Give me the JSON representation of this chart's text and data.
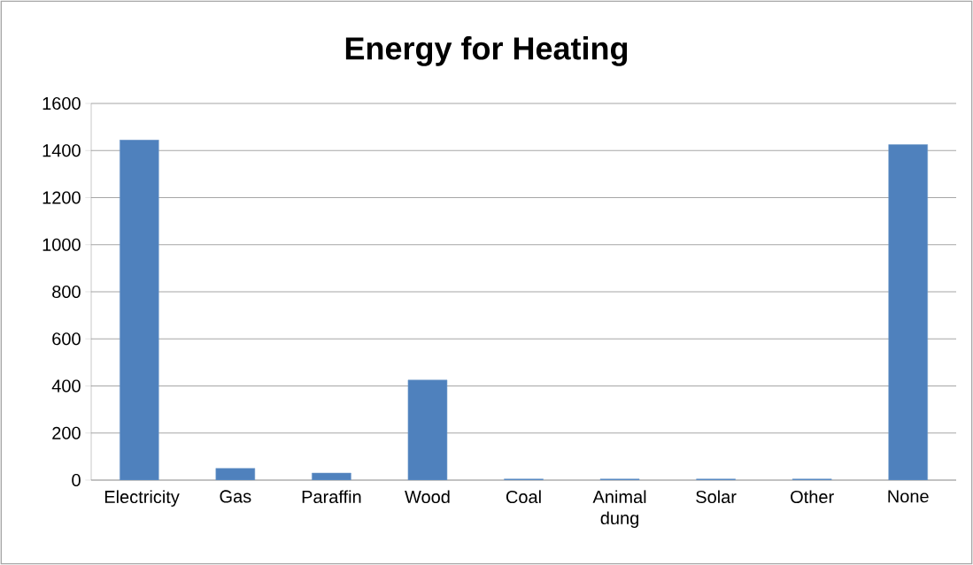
{
  "chart_data": {
    "type": "bar",
    "title": "Energy for Heating",
    "categories": [
      "Electricity",
      "Gas",
      "Paraffin",
      "Wood",
      "Coal",
      "Animal dung",
      "Solar",
      "Other",
      "None"
    ],
    "values": [
      1445,
      50,
      30,
      425,
      5,
      5,
      5,
      5,
      1425
    ],
    "color": "#4f81bd",
    "ylim": [
      0,
      1600
    ],
    "yticks": [
      0,
      200,
      400,
      600,
      800,
      1000,
      1200,
      1400,
      1600
    ],
    "grid": "y"
  }
}
